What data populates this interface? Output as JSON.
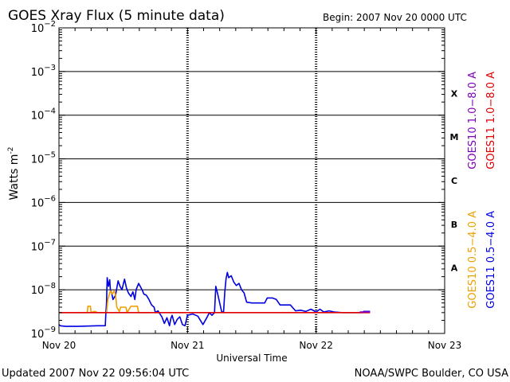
{
  "chart_data": {
    "type": "line",
    "title": "GOES Xray Flux (5 minute data)",
    "begin_label": "Begin:  2007 Nov 20 0000 UTC",
    "xlabel": "Universal Time",
    "ylabel": "Watts m",
    "ylabel_exp": "-2",
    "y_scale": "log",
    "ylim": [
      1e-09,
      0.01
    ],
    "xlim": [
      0,
      3
    ],
    "x_unit": "days since Nov 20 0000 UTC",
    "x_ticks": [
      {
        "x": 0,
        "label": "Nov 20"
      },
      {
        "x": 1,
        "label": "Nov 21"
      },
      {
        "x": 2,
        "label": "Nov 22"
      },
      {
        "x": 3,
        "label": "Nov 23"
      }
    ],
    "y_ticks": [
      {
        "exp": -2,
        "label": "10",
        "sup": "−2"
      },
      {
        "exp": -3,
        "label": "10",
        "sup": "−3"
      },
      {
        "exp": -4,
        "label": "10",
        "sup": "−4"
      },
      {
        "exp": -5,
        "label": "10",
        "sup": "−5"
      },
      {
        "exp": -6,
        "label": "10",
        "sup": "−6"
      },
      {
        "exp": -7,
        "label": "10",
        "sup": "−7"
      },
      {
        "exp": -8,
        "label": "10",
        "sup": "−8"
      },
      {
        "exp": -9,
        "label": "10",
        "sup": "−9"
      }
    ],
    "flare_classes": [
      {
        "label": "X",
        "exp": -3.5
      },
      {
        "label": "M",
        "exp": -4.5
      },
      {
        "label": "C",
        "exp": -5.5
      },
      {
        "label": "B",
        "exp": -6.5
      },
      {
        "label": "A",
        "exp": -7.5
      }
    ],
    "grid": "horizontal decade lines; dashed vertical lines at day boundaries",
    "legend_placement": "right, rotated vertical",
    "legend": [
      {
        "name": "GOES10 1.0−8.0 A",
        "color": "#8000c0"
      },
      {
        "name": "GOES11 1.0−8.0 A",
        "color": "#e00000"
      },
      {
        "name": "GOES10 0.5−4.0 A",
        "color": "#f0a000"
      },
      {
        "name": "GOES11 0.5−4.0 A",
        "color": "#0000e0"
      }
    ],
    "series": [
      {
        "name": "GOES11 0.5−4.0 A",
        "color": "#0000e0",
        "points": [
          [
            0.0,
            1.6e-09
          ],
          [
            0.01,
            1.5e-09
          ],
          [
            0.05,
            1.45e-09
          ],
          [
            0.15,
            1.45e-09
          ],
          [
            0.3,
            1.5e-09
          ],
          [
            0.36,
            1.5e-09
          ],
          [
            0.365,
            3e-09
          ],
          [
            0.37,
            5e-09
          ],
          [
            0.375,
            1.9e-08
          ],
          [
            0.385,
            1.2e-08
          ],
          [
            0.395,
            1.7e-08
          ],
          [
            0.4,
            1e-08
          ],
          [
            0.41,
            8.5e-09
          ],
          [
            0.42,
            6e-09
          ],
          [
            0.44,
            7.5e-09
          ],
          [
            0.46,
            1.6e-08
          ],
          [
            0.475,
            1.2e-08
          ],
          [
            0.49,
            1e-08
          ],
          [
            0.5,
            1.35e-08
          ],
          [
            0.51,
            1.75e-08
          ],
          [
            0.525,
            1.1e-08
          ],
          [
            0.54,
            8.5e-09
          ],
          [
            0.56,
            7e-09
          ],
          [
            0.575,
            9e-09
          ],
          [
            0.59,
            6e-09
          ],
          [
            0.6,
            1e-08
          ],
          [
            0.62,
            1.4e-08
          ],
          [
            0.65,
            9.5e-09
          ],
          [
            0.66,
            8e-09
          ],
          [
            0.68,
            7.5e-09
          ],
          [
            0.7,
            6e-09
          ],
          [
            0.72,
            4.5e-09
          ],
          [
            0.74,
            4e-09
          ],
          [
            0.75,
            3e-09
          ],
          [
            0.77,
            3.3e-09
          ],
          [
            0.8,
            2.4e-09
          ],
          [
            0.82,
            1.7e-09
          ],
          [
            0.84,
            2.3e-09
          ],
          [
            0.86,
            1.5e-09
          ],
          [
            0.87,
            2.2e-09
          ],
          [
            0.88,
            2.6e-09
          ],
          [
            0.9,
            1.6e-09
          ],
          [
            0.92,
            2.1e-09
          ],
          [
            0.94,
            2.4e-09
          ],
          [
            0.96,
            1.6e-09
          ],
          [
            0.98,
            1.5e-09
          ],
          [
            1.0,
            2.6e-09
          ],
          [
            1.04,
            2.8e-09
          ],
          [
            1.08,
            2.5e-09
          ],
          [
            1.12,
            1.6e-09
          ],
          [
            1.15,
            2.3e-09
          ],
          [
            1.17,
            3e-09
          ],
          [
            1.19,
            2.6e-09
          ],
          [
            1.21,
            3e-09
          ],
          [
            1.22,
            1.2e-08
          ],
          [
            1.235,
            8e-09
          ],
          [
            1.25,
            5e-09
          ],
          [
            1.265,
            3.2e-09
          ],
          [
            1.28,
            3e-09
          ],
          [
            1.29,
            9e-09
          ],
          [
            1.3,
            1.8e-08
          ],
          [
            1.31,
            2.5e-08
          ],
          [
            1.32,
            1.9e-08
          ],
          [
            1.34,
            2.1e-08
          ],
          [
            1.36,
            1.5e-08
          ],
          [
            1.38,
            1.25e-08
          ],
          [
            1.4,
            1.4e-08
          ],
          [
            1.42,
            1e-08
          ],
          [
            1.44,
            8.5e-09
          ],
          [
            1.46,
            5.2e-09
          ],
          [
            1.5,
            5e-09
          ],
          [
            1.55,
            5e-09
          ],
          [
            1.6,
            5e-09
          ],
          [
            1.62,
            6.5e-09
          ],
          [
            1.66,
            6.5e-09
          ],
          [
            1.69,
            6e-09
          ],
          [
            1.72,
            4.5e-09
          ],
          [
            1.76,
            4.5e-09
          ],
          [
            1.8,
            4.5e-09
          ],
          [
            1.84,
            3.3e-09
          ],
          [
            1.88,
            3.4e-09
          ],
          [
            1.92,
            3.2e-09
          ],
          [
            1.96,
            3.6e-09
          ],
          [
            2.0,
            3.1e-09
          ],
          [
            2.03,
            3.6e-09
          ],
          [
            2.06,
            3.1e-09
          ],
          [
            2.1,
            3.3e-09
          ],
          [
            2.14,
            3.1e-09
          ],
          [
            2.2,
            3e-09
          ],
          [
            2.3,
            3e-09
          ],
          [
            2.36,
            3e-09
          ],
          [
            2.37,
            3.2e-09
          ],
          [
            2.42,
            3.2e-09
          ]
        ]
      },
      {
        "name": "GOES10 0.5−4.0 A",
        "color": "#f0a000",
        "points": [
          [
            0.0,
            3e-09
          ],
          [
            0.22,
            3e-09
          ],
          [
            0.225,
            4.2e-09
          ],
          [
            0.245,
            4.2e-09
          ],
          [
            0.25,
            3e-09
          ],
          [
            0.26,
            3.1e-09
          ],
          [
            0.28,
            3.2e-09
          ],
          [
            0.3,
            3e-09
          ],
          [
            0.37,
            3e-09
          ],
          [
            0.38,
            6e-09
          ],
          [
            0.4,
            9.5e-09
          ],
          [
            0.415,
            8e-09
          ],
          [
            0.43,
            9.5e-09
          ],
          [
            0.44,
            7.5e-09
          ],
          [
            0.45,
            4e-09
          ],
          [
            0.47,
            3.2e-09
          ],
          [
            0.48,
            4e-09
          ],
          [
            0.52,
            4e-09
          ],
          [
            0.53,
            3e-09
          ],
          [
            0.56,
            4.2e-09
          ],
          [
            0.61,
            4.2e-09
          ],
          [
            0.62,
            3e-09
          ],
          [
            0.7,
            3e-09
          ]
        ]
      },
      {
        "name": "GOES11 1.0−8.0 A",
        "color": "#e00000",
        "points": [
          [
            0.0,
            3e-09
          ],
          [
            0.2,
            3e-09
          ],
          [
            0.4,
            3e-09
          ],
          [
            0.6,
            3e-09
          ],
          [
            0.8,
            3e-09
          ],
          [
            1.0,
            3e-09
          ],
          [
            1.2,
            3e-09
          ],
          [
            1.4,
            3e-09
          ],
          [
            1.6,
            3e-09
          ],
          [
            1.8,
            3e-09
          ],
          [
            2.0,
            3e-09
          ],
          [
            2.2,
            3e-09
          ],
          [
            2.3,
            3e-09
          ],
          [
            2.42,
            3e-09
          ]
        ]
      },
      {
        "name": "GOES10 1.0−8.0 A",
        "color": "#8000c0",
        "points": [
          [
            2.34,
            3.1e-09
          ],
          [
            2.42,
            3.1e-09
          ]
        ]
      }
    ]
  },
  "footer": {
    "updated": "Updated 2007 Nov 22 09:56:04 UTC",
    "source": "NOAA/SWPC Boulder, CO USA"
  }
}
